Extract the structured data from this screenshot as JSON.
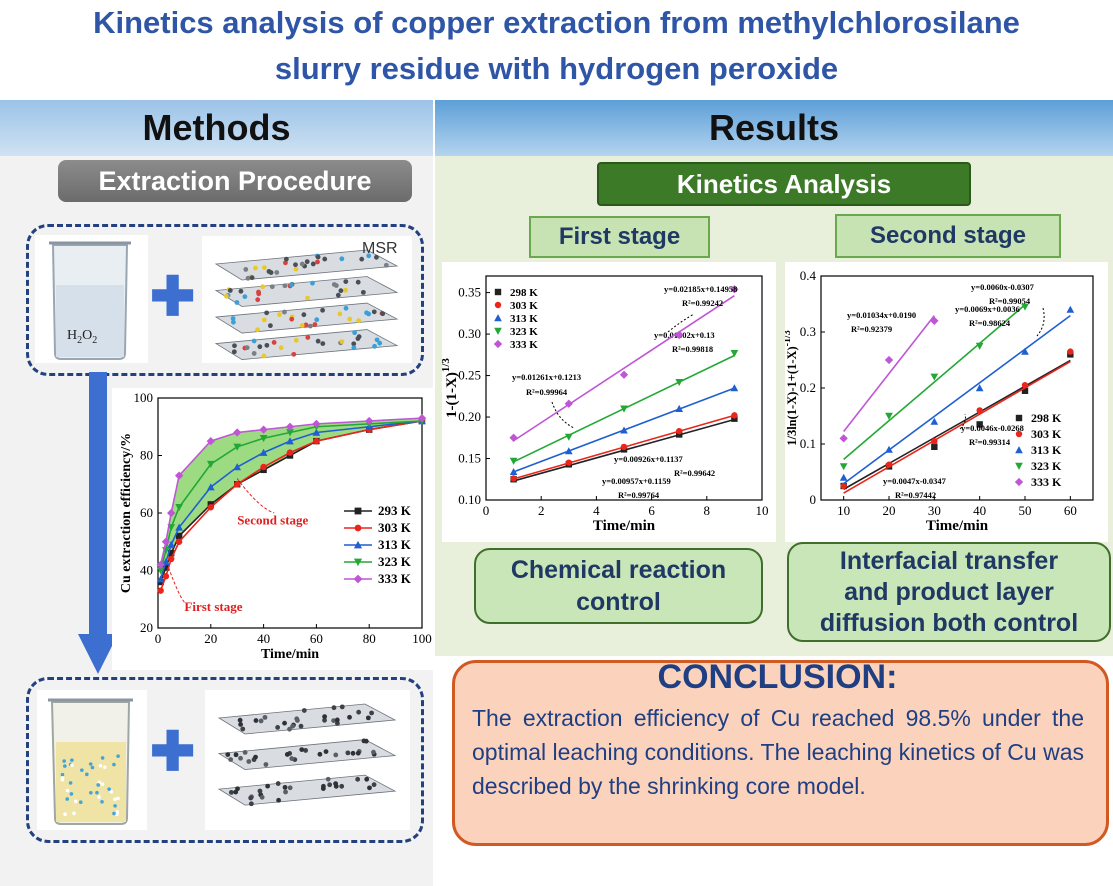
{
  "title_lines": [
    "Kinetics analysis of copper extraction from methylchlorosilane",
    "slurry residue with hydrogen peroxide"
  ],
  "methods": {
    "header": "Methods",
    "badge": "Extraction Procedure",
    "h2o2_label": "H2O2",
    "msr_label": "MSR",
    "plus": "✚"
  },
  "results": {
    "header": "Results",
    "badge": "Kinetics Analysis",
    "first_stage": "First stage",
    "second_stage": "Second stage",
    "first_control_lines": [
      "Chemical reaction",
      "control"
    ],
    "second_control_lines": [
      "Interfacial transfer",
      "and product layer",
      "diffusion both control"
    ]
  },
  "conclusion": {
    "title": "CONCLUSION:",
    "text": "The extraction efficiency of Cu reached 98.5% under the optimal leaching conditions. The leaching kinetics of Cu was described by the shrinking core model."
  },
  "colors": {
    "K293_298": "#222222",
    "K303": "#e8261b",
    "K313": "#1f5fd1",
    "K323": "#22a834",
    "K333": "#c055d6"
  },
  "chart_data": [
    {
      "type": "line",
      "xlabel": "Time/min",
      "ylabel": "Cu extraction efficiency/%",
      "xlim": [
        0,
        100
      ],
      "ylim": [
        20,
        100
      ],
      "xticks": [
        0,
        20,
        40,
        60,
        80,
        100
      ],
      "yticks": [
        20,
        40,
        60,
        80,
        100
      ],
      "annotations": [
        "First stage",
        "Second stage"
      ],
      "series": [
        {
          "name": "293 K",
          "color": "#222222",
          "marker": "square",
          "x": [
            1,
            3,
            5,
            8,
            20,
            30,
            40,
            50,
            60,
            80,
            100
          ],
          "y": [
            36,
            41,
            46,
            52,
            63,
            70,
            75,
            80,
            85,
            89,
            92
          ]
        },
        {
          "name": "303 K",
          "color": "#e8261b",
          "marker": "circle",
          "x": [
            1,
            3,
            5,
            8,
            20,
            30,
            40,
            50,
            60,
            80,
            100
          ],
          "y": [
            33,
            38,
            44,
            50,
            62,
            70,
            76,
            81,
            85,
            89,
            92
          ]
        },
        {
          "name": "313 K",
          "color": "#1f5fd1",
          "marker": "triangle-up",
          "x": [
            1,
            3,
            5,
            8,
            20,
            30,
            40,
            50,
            60,
            80,
            100
          ],
          "y": [
            37,
            43,
            49,
            55,
            69,
            76,
            81,
            85,
            88,
            90,
            92
          ]
        },
        {
          "name": "323 K",
          "color": "#22a834",
          "marker": "triangle-down",
          "x": [
            1,
            3,
            5,
            8,
            20,
            30,
            40,
            50,
            60,
            80,
            100
          ],
          "y": [
            40,
            47,
            55,
            62,
            77,
            83,
            86,
            88,
            90,
            91,
            92
          ]
        },
        {
          "name": "333 K",
          "color": "#c055d6",
          "marker": "diamond",
          "x": [
            1,
            3,
            5,
            8,
            20,
            30,
            40,
            50,
            60,
            80,
            100
          ],
          "y": [
            42,
            50,
            60,
            73,
            85,
            88,
            89,
            90,
            91,
            92,
            93
          ]
        }
      ]
    },
    {
      "type": "scatter",
      "xlabel": "Time/min",
      "ylabel": "1-(1-X)^1/3",
      "xlim": [
        0,
        10
      ],
      "ylim": [
        0.1,
        0.37
      ],
      "xticks": [
        0,
        2,
        4,
        6,
        8,
        10
      ],
      "yticks": [
        0.1,
        0.15,
        0.2,
        0.25,
        0.3,
        0.35
      ],
      "series": [
        {
          "name": "298 K",
          "color": "#222222",
          "marker": "square",
          "x": [
            1,
            3,
            5,
            7,
            9
          ],
          "y": [
            0.125,
            0.143,
            0.161,
            0.179,
            0.198
          ],
          "fit": [
            0.00926,
            0.1137
          ],
          "equation": "y=0.00926x+0.1137",
          "r2": "R²=0.99642"
        },
        {
          "name": "303 K",
          "color": "#e8261b",
          "marker": "circle",
          "x": [
            1,
            3,
            5,
            7,
            9
          ],
          "y": [
            0.126,
            0.145,
            0.164,
            0.183,
            0.202
          ],
          "fit": [
            0.00957,
            0.1159
          ],
          "equation": "y=0.00957x+0.1159",
          "r2": "R²=0.99764"
        },
        {
          "name": "313 K",
          "color": "#1f5fd1",
          "marker": "triangle-up",
          "x": [
            1,
            3,
            5,
            7,
            9
          ],
          "y": [
            0.134,
            0.159,
            0.184,
            0.21,
            0.235
          ],
          "fit": [
            0.01261,
            0.1213
          ],
          "equation": "y=0.01261x+0.1213",
          "r2": "R²=0.99964"
        },
        {
          "name": "323 K",
          "color": "#22a834",
          "marker": "triangle-down",
          "x": [
            1,
            3,
            5,
            7,
            9
          ],
          "y": [
            0.147,
            0.176,
            0.21,
            0.242,
            0.277
          ],
          "fit": [
            0.01602,
            0.13
          ],
          "equation": "y=0.01602x+0.13",
          "r2": "R²=0.99818"
        },
        {
          "name": "333 K",
          "color": "#c055d6",
          "marker": "diamond",
          "x": [
            1,
            3,
            5,
            7,
            9
          ],
          "y": [
            0.175,
            0.216,
            0.251,
            0.299,
            0.354
          ],
          "fit": [
            0.02185,
            0.14958
          ],
          "equation": "y=0.02185x+0.14958",
          "r2": "R²=0.99242"
        }
      ]
    },
    {
      "type": "scatter",
      "xlabel": "Time/min",
      "ylabel": "1/3ln(1-X)-1+(1-X)^-1/3",
      "xlim": [
        5,
        65
      ],
      "ylim": [
        0,
        0.4
      ],
      "xticks": [
        10,
        20,
        30,
        40,
        50,
        60
      ],
      "yticks": [
        0,
        0.1,
        0.2,
        0.3,
        0.4
      ],
      "series": [
        {
          "name": "298 K",
          "color": "#222222",
          "marker": "square",
          "x": [
            10,
            20,
            30,
            40,
            50,
            60
          ],
          "y": [
            0.025,
            0.06,
            0.095,
            0.135,
            0.195,
            0.26
          ],
          "fit": [
            0.0046,
            -0.0268
          ],
          "xfit": [
            10,
            60
          ],
          "equation": "y=0.0046x-0.0268",
          "r2": "R²=0.99314"
        },
        {
          "name": "303 K",
          "color": "#e8261b",
          "marker": "circle",
          "x": [
            10,
            20,
            30,
            40,
            50,
            60
          ],
          "y": [
            0.025,
            0.063,
            0.105,
            0.16,
            0.205,
            0.265
          ],
          "fit": [
            0.0047,
            -0.0347
          ],
          "xfit": [
            10,
            60
          ],
          "equation": "y=0.0047x-0.0347",
          "r2": "R²=0.97442"
        },
        {
          "name": "313 K",
          "color": "#1f5fd1",
          "marker": "triangle-up",
          "x": [
            10,
            20,
            30,
            40,
            50,
            60
          ],
          "y": [
            0.04,
            0.09,
            0.14,
            0.2,
            0.265,
            0.34
          ],
          "fit": [
            0.006,
            -0.0307
          ],
          "xfit": [
            10,
            60
          ],
          "equation": "y=0.0060x-0.0307",
          "r2": "R²=0.99054"
        },
        {
          "name": "323 K",
          "color": "#22a834",
          "marker": "triangle-down",
          "x": [
            10,
            20,
            30,
            40,
            50
          ],
          "y": [
            0.06,
            0.15,
            0.22,
            0.275,
            0.345
          ],
          "fit": [
            0.0069,
            0.0036
          ],
          "xfit": [
            10,
            50
          ],
          "equation": "y=0.0069x+0.0036",
          "r2": "R²=0.98624"
        },
        {
          "name": "333 K",
          "color": "#c055d6",
          "marker": "diamond",
          "x": [
            10,
            20,
            30
          ],
          "y": [
            0.11,
            0.25,
            0.32
          ],
          "fit": [
            0.01034,
            0.019
          ],
          "xfit": [
            10,
            30
          ],
          "equation": "y=0.01034x+0.0190",
          "r2": "R²=0.92379"
        }
      ]
    }
  ]
}
